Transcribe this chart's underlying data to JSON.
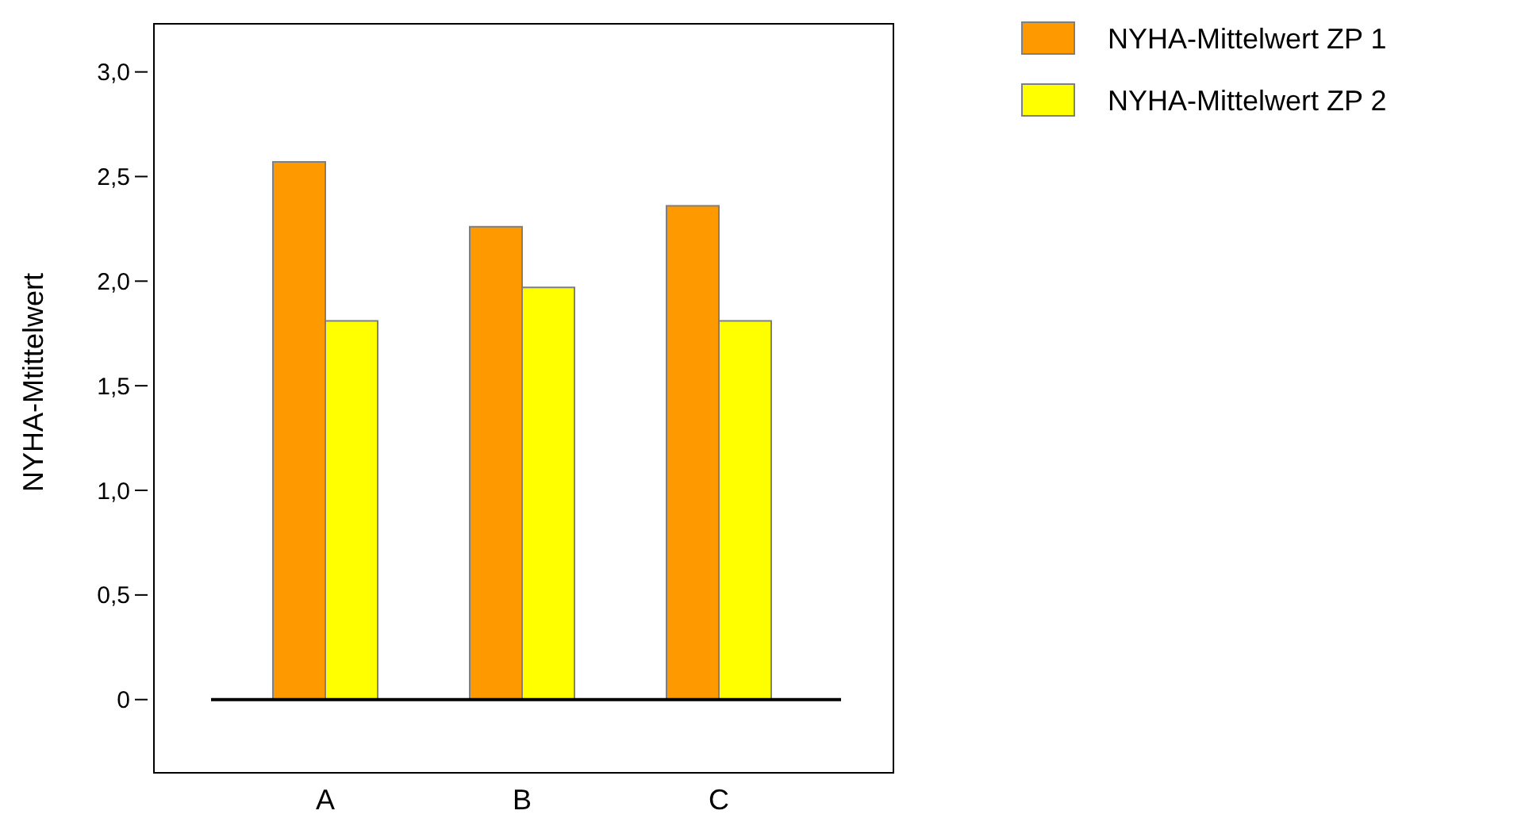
{
  "chart_data": {
    "type": "bar",
    "ylabel": "NYHA-Mtittelwert",
    "categories": [
      "A",
      "B",
      "C"
    ],
    "series": [
      {
        "name": "NYHA-Mittelwert ZP 1",
        "color": "#ff9900",
        "values": [
          2.57,
          2.26,
          2.36
        ]
      },
      {
        "name": "NYHA-Mittelwert ZP 2",
        "color": "#ffff00",
        "values": [
          1.81,
          1.97,
          1.81
        ]
      }
    ],
    "ylim": [
      -0.35,
      3.23
    ],
    "yticks": [
      {
        "value": 0,
        "label": "0"
      },
      {
        "value": 0.5,
        "label": "0,5"
      },
      {
        "value": 1,
        "label": "1,0"
      },
      {
        "value": 1.5,
        "label": "1,5"
      },
      {
        "value": 2,
        "label": "2,0"
      },
      {
        "value": 2.5,
        "label": "2,5"
      },
      {
        "value": 3,
        "label": "3,0"
      }
    ],
    "legend": "top right"
  }
}
